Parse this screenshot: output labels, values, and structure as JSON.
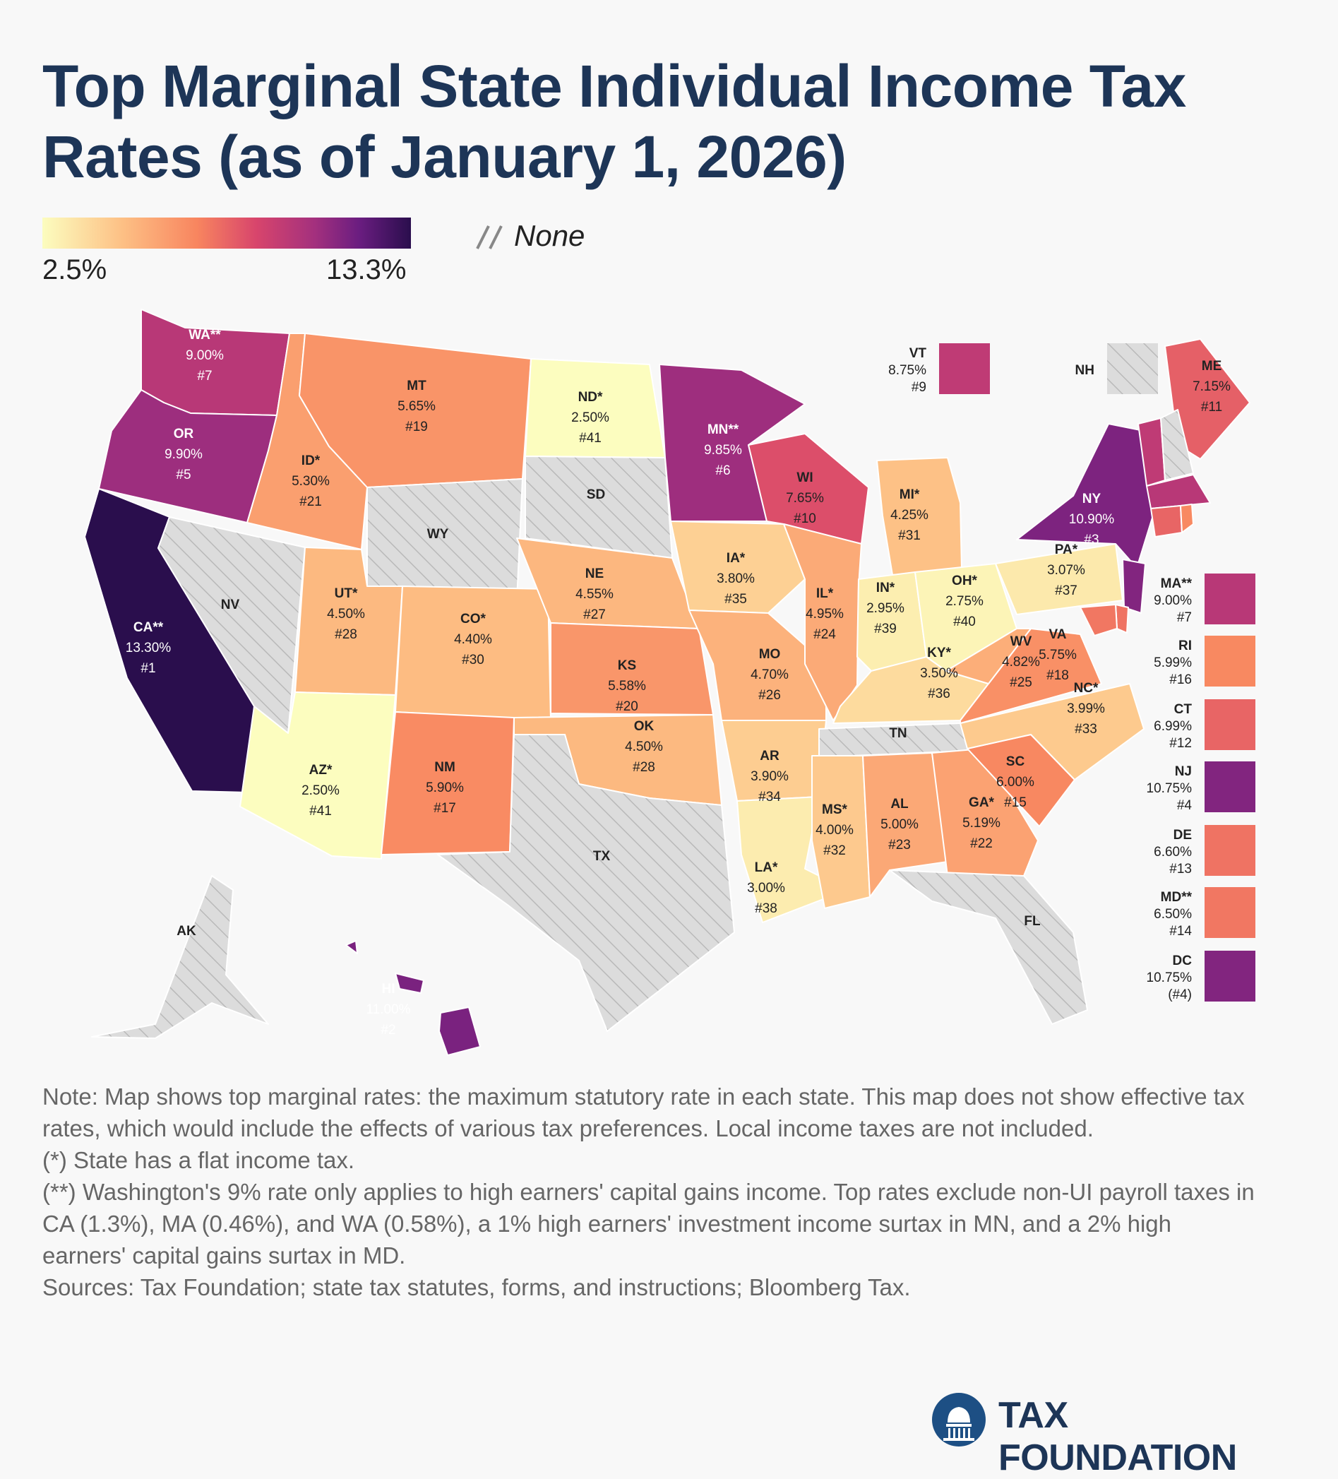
{
  "title": "Top Marginal State Individual Income Tax Rates (as of January 1, 2026)",
  "legend": {
    "min_label": "2.5%",
    "max_label": "13.3%",
    "min_value": 2.5,
    "max_value": 13.3,
    "none_label": "None",
    "colors": [
      "#fcfdbf",
      "#fdbf84",
      "#f8855f",
      "#d8456c",
      "#a3307e",
      "#6a1d80",
      "#2a0e4d"
    ]
  },
  "chart_data": {
    "type": "choropleth",
    "metric": "Top marginal state individual income tax rate",
    "states": [
      {
        "abbr": "WA**",
        "rate": "9.00%",
        "rank": "#7",
        "value": 9.0
      },
      {
        "abbr": "OR",
        "rate": "9.90%",
        "rank": "#5",
        "value": 9.9
      },
      {
        "abbr": "CA**",
        "rate": "13.30%",
        "rank": "#1",
        "value": 13.3
      },
      {
        "abbr": "ID*",
        "rate": "5.30%",
        "rank": "#21",
        "value": 5.3
      },
      {
        "abbr": "NV",
        "rate": null,
        "rank": null,
        "value": null
      },
      {
        "abbr": "MT",
        "rate": "5.65%",
        "rank": "#19",
        "value": 5.65
      },
      {
        "abbr": "WY",
        "rate": null,
        "rank": null,
        "value": null
      },
      {
        "abbr": "UT*",
        "rate": "4.50%",
        "rank": "#28",
        "value": 4.5
      },
      {
        "abbr": "AZ*",
        "rate": "2.50%",
        "rank": "#41",
        "value": 2.5
      },
      {
        "abbr": "CO*",
        "rate": "4.40%",
        "rank": "#30",
        "value": 4.4
      },
      {
        "abbr": "NM",
        "rate": "5.90%",
        "rank": "#17",
        "value": 5.9
      },
      {
        "abbr": "ND*",
        "rate": "2.50%",
        "rank": "#41",
        "value": 2.5
      },
      {
        "abbr": "SD",
        "rate": null,
        "rank": null,
        "value": null
      },
      {
        "abbr": "NE",
        "rate": "4.55%",
        "rank": "#27",
        "value": 4.55
      },
      {
        "abbr": "KS",
        "rate": "5.58%",
        "rank": "#20",
        "value": 5.58
      },
      {
        "abbr": "OK",
        "rate": "4.50%",
        "rank": "#28",
        "value": 4.5
      },
      {
        "abbr": "TX",
        "rate": null,
        "rank": null,
        "value": null
      },
      {
        "abbr": "MN**",
        "rate": "9.85%",
        "rank": "#6",
        "value": 9.85
      },
      {
        "abbr": "IA*",
        "rate": "3.80%",
        "rank": "#35",
        "value": 3.8
      },
      {
        "abbr": "MO",
        "rate": "4.70%",
        "rank": "#26",
        "value": 4.7
      },
      {
        "abbr": "AR",
        "rate": "3.90%",
        "rank": "#34",
        "value": 3.9
      },
      {
        "abbr": "LA*",
        "rate": "3.00%",
        "rank": "#38",
        "value": 3.0
      },
      {
        "abbr": "WI",
        "rate": "7.65%",
        "rank": "#10",
        "value": 7.65
      },
      {
        "abbr": "IL*",
        "rate": "4.95%",
        "rank": "#24",
        "value": 4.95
      },
      {
        "abbr": "MI*",
        "rate": "4.25%",
        "rank": "#31",
        "value": 4.25
      },
      {
        "abbr": "IN*",
        "rate": "2.95%",
        "rank": "#39",
        "value": 2.95
      },
      {
        "abbr": "OH*",
        "rate": "2.75%",
        "rank": "#40",
        "value": 2.75
      },
      {
        "abbr": "KY*",
        "rate": "3.50%",
        "rank": "#36",
        "value": 3.5
      },
      {
        "abbr": "TN",
        "rate": null,
        "rank": null,
        "value": null
      },
      {
        "abbr": "MS*",
        "rate": "4.00%",
        "rank": "#32",
        "value": 4.0
      },
      {
        "abbr": "AL",
        "rate": "5.00%",
        "rank": "#23",
        "value": 5.0
      },
      {
        "abbr": "GA*",
        "rate": "5.19%",
        "rank": "#22",
        "value": 5.19
      },
      {
        "abbr": "FL",
        "rate": null,
        "rank": null,
        "value": null
      },
      {
        "abbr": "SC",
        "rate": "6.00%",
        "rank": "#15",
        "value": 6.0
      },
      {
        "abbr": "NC*",
        "rate": "3.99%",
        "rank": "#33",
        "value": 3.99
      },
      {
        "abbr": "VA",
        "rate": "5.75%",
        "rank": "#18",
        "value": 5.75
      },
      {
        "abbr": "WV",
        "rate": "4.82%",
        "rank": "#25",
        "value": 4.82
      },
      {
        "abbr": "PA*",
        "rate": "3.07%",
        "rank": "#37",
        "value": 3.07
      },
      {
        "abbr": "NY",
        "rate": "10.90%",
        "rank": "#3",
        "value": 10.9
      },
      {
        "abbr": "ME",
        "rate": "7.15%",
        "rank": "#11",
        "value": 7.15
      },
      {
        "abbr": "AK",
        "rate": null,
        "rank": null,
        "value": null
      },
      {
        "abbr": "HI",
        "rate": "11.00%",
        "rank": "#2",
        "value": 11.0
      }
    ],
    "side_boxes": [
      {
        "abbr": "VT",
        "rate": "8.75%",
        "rank": "#9",
        "value": 8.75
      },
      {
        "abbr": "NH",
        "rate": null,
        "rank": null,
        "value": null
      },
      {
        "abbr": "MA**",
        "rate": "9.00%",
        "rank": "#7",
        "value": 9.0
      },
      {
        "abbr": "RI",
        "rate": "5.99%",
        "rank": "#16",
        "value": 5.99
      },
      {
        "abbr": "CT",
        "rate": "6.99%",
        "rank": "#12",
        "value": 6.99
      },
      {
        "abbr": "NJ",
        "rate": "10.75%",
        "rank": "#4",
        "value": 10.75
      },
      {
        "abbr": "DE",
        "rate": "6.60%",
        "rank": "#13",
        "value": 6.6
      },
      {
        "abbr": "MD**",
        "rate": "6.50%",
        "rank": "#14",
        "value": 6.5
      },
      {
        "abbr": "DC",
        "rate": "10.75%",
        "rank": "(#4)",
        "value": 10.75
      }
    ]
  },
  "notes": [
    "Note: Map shows top marginal rates: the maximum statutory rate in each state. This map does not show effective tax rates, which would include the effects of various tax preferences. Local income taxes are not included.",
    "(*) State has a flat income tax.",
    "(**) Washington's 9% rate only applies to high earners' capital gains income. Top rates exclude non-UI payroll taxes in CA (1.3%), MA (0.46%), and WA (0.58%), a 1% high earners' investment income surtax in MN, and a 2% high earners' capital gains surtax in MD.",
    "Sources: Tax Foundation; state tax statutes, forms, and instructions; Bloomberg Tax."
  ],
  "brand": "TAX FOUNDATION"
}
